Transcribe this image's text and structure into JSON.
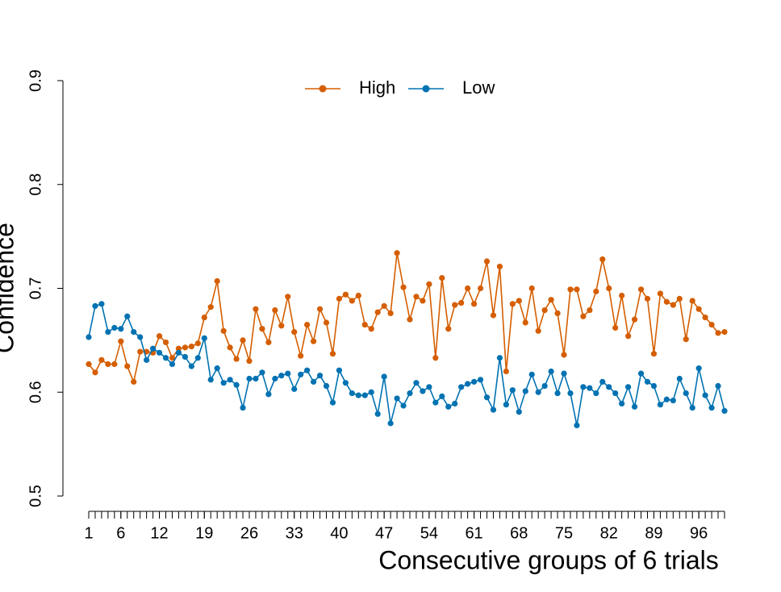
{
  "chart_data": {
    "type": "line",
    "xlabel": "Consecutive groups of 6 trials",
    "ylabel": "Confidence",
    "x": [
      1,
      2,
      3,
      4,
      5,
      6,
      7,
      8,
      9,
      10,
      11,
      12,
      13,
      14,
      15,
      16,
      17,
      18,
      19,
      20,
      21,
      22,
      23,
      24,
      25,
      26,
      27,
      28,
      29,
      30,
      31,
      32,
      33,
      34,
      35,
      36,
      37,
      38,
      39,
      40,
      41,
      42,
      43,
      44,
      45,
      46,
      47,
      48,
      49,
      50,
      51,
      52,
      53,
      54,
      55,
      56,
      57,
      58,
      59,
      60,
      61,
      62,
      63,
      64,
      65,
      66,
      67,
      68,
      69,
      70,
      71,
      72,
      73,
      74,
      75,
      76,
      77,
      78,
      79,
      80,
      81,
      82,
      83,
      84,
      85,
      86,
      87,
      88,
      89,
      90,
      91,
      92,
      93,
      94,
      95,
      96,
      97,
      98,
      99,
      100
    ],
    "series": [
      {
        "name": "High",
        "color": "#d55e00",
        "values": [
          0.627,
          0.619,
          0.631,
          0.627,
          0.627,
          0.649,
          0.625,
          0.61,
          0.639,
          0.639,
          0.638,
          0.654,
          0.648,
          0.633,
          0.642,
          0.643,
          0.644,
          0.647,
          0.672,
          0.682,
          0.707,
          0.659,
          0.643,
          0.632,
          0.65,
          0.63,
          0.68,
          0.661,
          0.648,
          0.679,
          0.664,
          0.692,
          0.658,
          0.635,
          0.665,
          0.649,
          0.68,
          0.667,
          0.637,
          0.69,
          0.694,
          0.688,
          0.693,
          0.665,
          0.661,
          0.677,
          0.683,
          0.676,
          0.734,
          0.701,
          0.67,
          0.692,
          0.688,
          0.704,
          0.633,
          0.71,
          0.661,
          0.684,
          0.686,
          0.7,
          0.685,
          0.7,
          0.726,
          0.674,
          0.721,
          0.62,
          0.685,
          0.688,
          0.667,
          0.7,
          0.659,
          0.679,
          0.689,
          0.676,
          0.636,
          0.699,
          0.699,
          0.673,
          0.679,
          0.697,
          0.728,
          0.7,
          0.662,
          0.693,
          0.654,
          0.67,
          0.699,
          0.69,
          0.637,
          0.695,
          0.687,
          0.684,
          0.69,
          0.651,
          0.688,
          0.68,
          0.672,
          0.665,
          0.657,
          0.658
        ]
      },
      {
        "name": "Low",
        "color": "#0072b2",
        "values": [
          0.653,
          0.683,
          0.685,
          0.658,
          0.662,
          0.661,
          0.673,
          0.658,
          0.653,
          0.631,
          0.642,
          0.638,
          0.633,
          0.627,
          0.638,
          0.634,
          0.625,
          0.633,
          0.652,
          0.612,
          0.623,
          0.609,
          0.612,
          0.607,
          0.585,
          0.613,
          0.613,
          0.619,
          0.598,
          0.613,
          0.616,
          0.618,
          0.603,
          0.617,
          0.621,
          0.61,
          0.616,
          0.606,
          0.59,
          0.621,
          0.609,
          0.599,
          0.597,
          0.597,
          0.6,
          0.579,
          0.615,
          0.57,
          0.594,
          0.587,
          0.599,
          0.609,
          0.601,
          0.605,
          0.59,
          0.596,
          0.586,
          0.589,
          0.605,
          0.608,
          0.61,
          0.612,
          0.595,
          0.583,
          0.633,
          0.588,
          0.602,
          0.581,
          0.601,
          0.617,
          0.6,
          0.606,
          0.62,
          0.599,
          0.618,
          0.599,
          0.568,
          0.605,
          0.604,
          0.599,
          0.61,
          0.605,
          0.599,
          0.589,
          0.605,
          0.586,
          0.618,
          0.61,
          0.606,
          0.588,
          0.593,
          0.592,
          0.613,
          0.599,
          0.585,
          0.623,
          0.597,
          0.585,
          0.606,
          0.582
        ]
      }
    ],
    "xlim": [
      1,
      100
    ],
    "xticks": [
      1,
      6,
      12,
      19,
      26,
      33,
      40,
      47,
      54,
      61,
      68,
      75,
      82,
      89,
      96
    ],
    "ylim": [
      0.485,
      0.9
    ],
    "yticks": [
      0.5,
      0.6,
      0.7,
      0.8,
      0.9
    ],
    "legend": "top"
  }
}
